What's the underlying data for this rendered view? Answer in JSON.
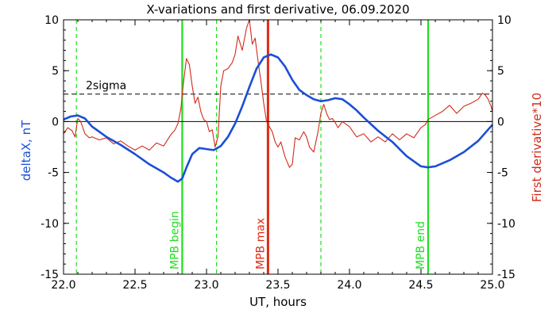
{
  "chart_data": {
    "type": "line",
    "title": "X-variations and first derivative, 06.09.2020",
    "xlabel": "UT, hours",
    "ylabel_left": "deltaX, nT",
    "ylabel_right": "First derivative*10",
    "xlim": [
      22.0,
      25.0
    ],
    "ylim": [
      -15,
      10
    ],
    "x_ticks": [
      "22.0",
      "22.5",
      "23.0",
      "23.5",
      "24.0",
      "24.5",
      "25.0"
    ],
    "y_ticks": [
      "-15",
      "-10",
      "-5",
      "0",
      "5",
      "10"
    ],
    "grid": false,
    "series": [
      {
        "name": "deltaX, nT",
        "color": "#1a4fd6",
        "x": [
          22.0,
          22.05,
          22.1,
          22.15,
          22.2,
          22.3,
          22.4,
          22.5,
          22.6,
          22.7,
          22.75,
          22.8,
          22.83,
          22.86,
          22.9,
          22.95,
          23.0,
          23.05,
          23.1,
          23.15,
          23.2,
          23.25,
          23.3,
          23.35,
          23.4,
          23.45,
          23.5,
          23.55,
          23.6,
          23.65,
          23.7,
          23.75,
          23.8,
          23.85,
          23.9,
          23.95,
          24.0,
          24.05,
          24.1,
          24.2,
          24.3,
          24.4,
          24.5,
          24.55,
          24.6,
          24.7,
          24.8,
          24.9,
          25.0
        ],
        "values": [
          0.2,
          0.5,
          0.6,
          0.3,
          -0.5,
          -1.5,
          -2.3,
          -3.2,
          -4.2,
          -5.0,
          -5.5,
          -5.9,
          -5.6,
          -4.5,
          -3.2,
          -2.6,
          -2.7,
          -2.8,
          -2.4,
          -1.5,
          -0.2,
          1.5,
          3.4,
          5.2,
          6.3,
          6.6,
          6.3,
          5.4,
          4.1,
          3.1,
          2.6,
          2.2,
          2.0,
          2.1,
          2.3,
          2.2,
          1.7,
          1.1,
          0.4,
          -0.9,
          -2.0,
          -3.4,
          -4.4,
          -4.5,
          -4.4,
          -3.8,
          -3.0,
          -1.9,
          -0.3
        ]
      },
      {
        "name": "First derivative*10",
        "color": "#d12b1a",
        "x": [
          22.0,
          22.03,
          22.06,
          22.08,
          22.1,
          22.12,
          22.15,
          22.18,
          22.2,
          22.25,
          22.3,
          22.35,
          22.4,
          22.45,
          22.5,
          22.55,
          22.6,
          22.65,
          22.7,
          22.75,
          22.78,
          22.8,
          22.82,
          22.84,
          22.86,
          22.88,
          22.9,
          22.92,
          22.94,
          22.96,
          22.98,
          23.0,
          23.02,
          23.04,
          23.06,
          23.08,
          23.1,
          23.12,
          23.15,
          23.18,
          23.2,
          23.22,
          23.25,
          23.28,
          23.3,
          23.32,
          23.34,
          23.36,
          23.38,
          23.4,
          23.42,
          23.44,
          23.46,
          23.48,
          23.5,
          23.52,
          23.55,
          23.58,
          23.6,
          23.62,
          23.65,
          23.68,
          23.7,
          23.72,
          23.75,
          23.78,
          23.8,
          23.82,
          23.84,
          23.86,
          23.88,
          23.9,
          23.92,
          23.95,
          24.0,
          24.05,
          24.1,
          24.15,
          24.2,
          24.25,
          24.3,
          24.35,
          24.4,
          24.45,
          24.5,
          24.53,
          24.55,
          24.6,
          24.65,
          24.7,
          24.75,
          24.8,
          24.85,
          24.9,
          24.93,
          24.95,
          24.97,
          24.99,
          25.0
        ],
        "values": [
          -1.2,
          -0.6,
          -0.9,
          -1.5,
          0.3,
          0.0,
          -1.2,
          -1.6,
          -1.5,
          -1.8,
          -1.6,
          -2.2,
          -1.9,
          -2.4,
          -2.8,
          -2.4,
          -2.8,
          -2.1,
          -2.4,
          -1.3,
          -0.8,
          -0.2,
          1.2,
          4.0,
          6.2,
          5.6,
          3.5,
          1.8,
          2.4,
          1.0,
          0.2,
          0.0,
          -1.0,
          -0.8,
          -2.5,
          -1.5,
          3.5,
          5.0,
          5.2,
          5.8,
          6.6,
          8.4,
          7.0,
          9.2,
          10.0,
          7.6,
          8.2,
          6.0,
          4.0,
          1.8,
          0.0,
          -0.5,
          -1.0,
          -2.0,
          -2.5,
          -2.0,
          -3.5,
          -4.5,
          -4.2,
          -1.6,
          -1.8,
          -1.0,
          -1.5,
          -2.5,
          -3.0,
          -1.0,
          0.8,
          1.7,
          0.8,
          0.2,
          0.3,
          -0.1,
          -0.6,
          0.0,
          -0.5,
          -1.5,
          -1.2,
          -2.0,
          -1.5,
          -2.0,
          -1.2,
          -1.8,
          -1.2,
          -1.6,
          -0.6,
          -0.3,
          0.2,
          0.6,
          1.0,
          1.6,
          0.8,
          1.5,
          1.8,
          2.2,
          2.8,
          2.6,
          2.2,
          1.5,
          1.0
        ]
      }
    ],
    "threshold": {
      "label": "2sigma",
      "value": 2.7
    },
    "zero_line": 0,
    "markers": [
      {
        "label": "MPB begin",
        "x": 22.83,
        "color": "#1fe01f",
        "style": "solid"
      },
      {
        "label": "MPB max",
        "x": 23.43,
        "color": "#e02a12",
        "style": "solid"
      },
      {
        "label": "MPB end",
        "x": 24.55,
        "color": "#1fe01f",
        "style": "solid"
      }
    ],
    "dashed_markers": [
      {
        "x": 22.09,
        "color": "#1fe01f"
      },
      {
        "x": 23.07,
        "color": "#1fe01f"
      },
      {
        "x": 23.8,
        "color": "#1fe01f"
      }
    ]
  }
}
